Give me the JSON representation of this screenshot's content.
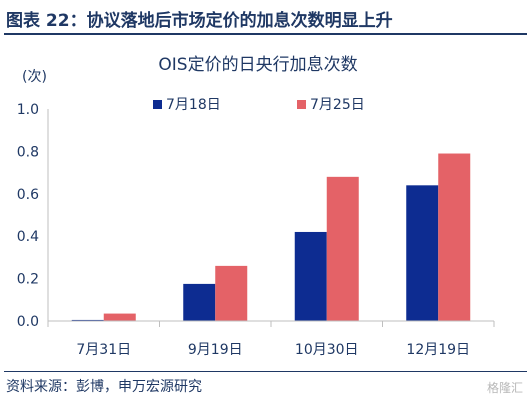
{
  "figure": {
    "title": "图表 22：协议落地后市场定价的加息次数明显上升",
    "source": "资料来源：彭博，申万宏源研究",
    "watermark": "格隆汇"
  },
  "colors": {
    "navy": "#1f3864",
    "series1": "#0d2c91",
    "series2": "#e46267",
    "axis": "#bfbfbf"
  },
  "chart_data": {
    "type": "bar",
    "title": "OIS定价的日央行加息次数",
    "ylabel": "(次)",
    "categories": [
      "7月31日",
      "9月19日",
      "10月30日",
      "12月19日"
    ],
    "series": [
      {
        "name": "7月18日",
        "values": [
          0.005,
          0.175,
          0.42,
          0.64
        ]
      },
      {
        "name": "7月25日",
        "values": [
          0.035,
          0.26,
          0.68,
          0.79
        ]
      }
    ],
    "ylim": [
      0,
      1.0
    ],
    "yticks": [
      "0.0",
      "0.2",
      "0.4",
      "0.6",
      "0.8",
      "1.0"
    ],
    "legend_position": "top",
    "grid": false
  }
}
